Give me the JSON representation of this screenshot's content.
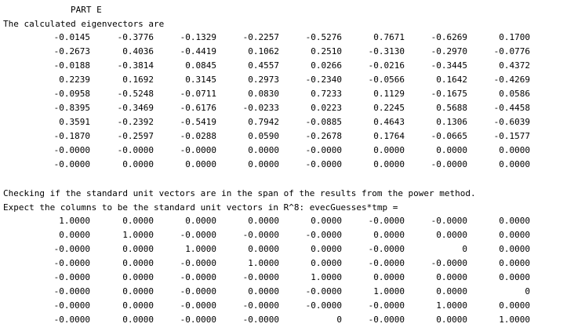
{
  "part_label": "PART E",
  "intro_line": "The calculated eigenvectors are",
  "eigenvectors": [
    [
      "-0.0145",
      "-0.3776",
      "-0.1329",
      "-0.2257",
      "-0.5276",
      "0.7671",
      "-0.6269",
      "0.1700"
    ],
    [
      "-0.2673",
      "0.4036",
      "-0.4419",
      "0.1062",
      "0.2510",
      "-0.3130",
      "-0.2970",
      "-0.0776"
    ],
    [
      "-0.0188",
      "-0.3814",
      "0.0845",
      "0.4557",
      "0.0266",
      "-0.0216",
      "-0.3445",
      "0.4372"
    ],
    [
      "0.2239",
      "0.1692",
      "0.3145",
      "0.2973",
      "-0.2340",
      "-0.0566",
      "0.1642",
      "-0.4269"
    ],
    [
      "-0.0958",
      "-0.5248",
      "-0.0711",
      "0.0830",
      "0.7233",
      "0.1129",
      "-0.1675",
      "0.0586"
    ],
    [
      "-0.8395",
      "-0.3469",
      "-0.6176",
      "-0.0233",
      "0.0223",
      "0.2245",
      "0.5688",
      "-0.4458"
    ],
    [
      "0.3591",
      "-0.2392",
      "-0.5419",
      "0.7942",
      "-0.0885",
      "0.4643",
      "0.1306",
      "-0.6039"
    ],
    [
      "-0.1870",
      "-0.2597",
      "-0.0288",
      "0.0590",
      "-0.2678",
      "0.1764",
      "-0.0665",
      "-0.1577"
    ],
    [
      "-0.0000",
      "-0.0000",
      "-0.0000",
      "0.0000",
      "-0.0000",
      "0.0000",
      "0.0000",
      "0.0000"
    ],
    [
      "-0.0000",
      "0.0000",
      "0.0000",
      "0.0000",
      "-0.0000",
      "0.0000",
      "-0.0000",
      "0.0000"
    ]
  ],
  "check_line_1": "Checking if the standard unit vectors are in the span of the results from the power method.",
  "check_line_2": "Expect the columns to be the standard unit vectors in R^8: evecGuesses*tmp =",
  "result_matrix": [
    [
      "1.0000",
      "0.0000",
      "0.0000",
      "0.0000",
      "0.0000",
      "-0.0000",
      "-0.0000",
      "0.0000"
    ],
    [
      "0.0000",
      "1.0000",
      "-0.0000",
      "-0.0000",
      "-0.0000",
      "0.0000",
      "0.0000",
      "0.0000"
    ],
    [
      "-0.0000",
      "0.0000",
      "1.0000",
      "0.0000",
      "0.0000",
      "-0.0000",
      "0",
      "0.0000"
    ],
    [
      "-0.0000",
      "0.0000",
      "-0.0000",
      "1.0000",
      "0.0000",
      "-0.0000",
      "-0.0000",
      "0.0000"
    ],
    [
      "-0.0000",
      "0.0000",
      "-0.0000",
      "-0.0000",
      "1.0000",
      "0.0000",
      "0.0000",
      "0.0000"
    ],
    [
      "-0.0000",
      "0.0000",
      "-0.0000",
      "0.0000",
      "-0.0000",
      "1.0000",
      "0.0000",
      "0"
    ],
    [
      "-0.0000",
      "0.0000",
      "-0.0000",
      "-0.0000",
      "-0.0000",
      "-0.0000",
      "1.0000",
      "0.0000"
    ],
    [
      "-0.0000",
      "0.0000",
      "-0.0000",
      "-0.0000",
      "0",
      "-0.0000",
      "0.0000",
      "1.0000"
    ]
  ]
}
